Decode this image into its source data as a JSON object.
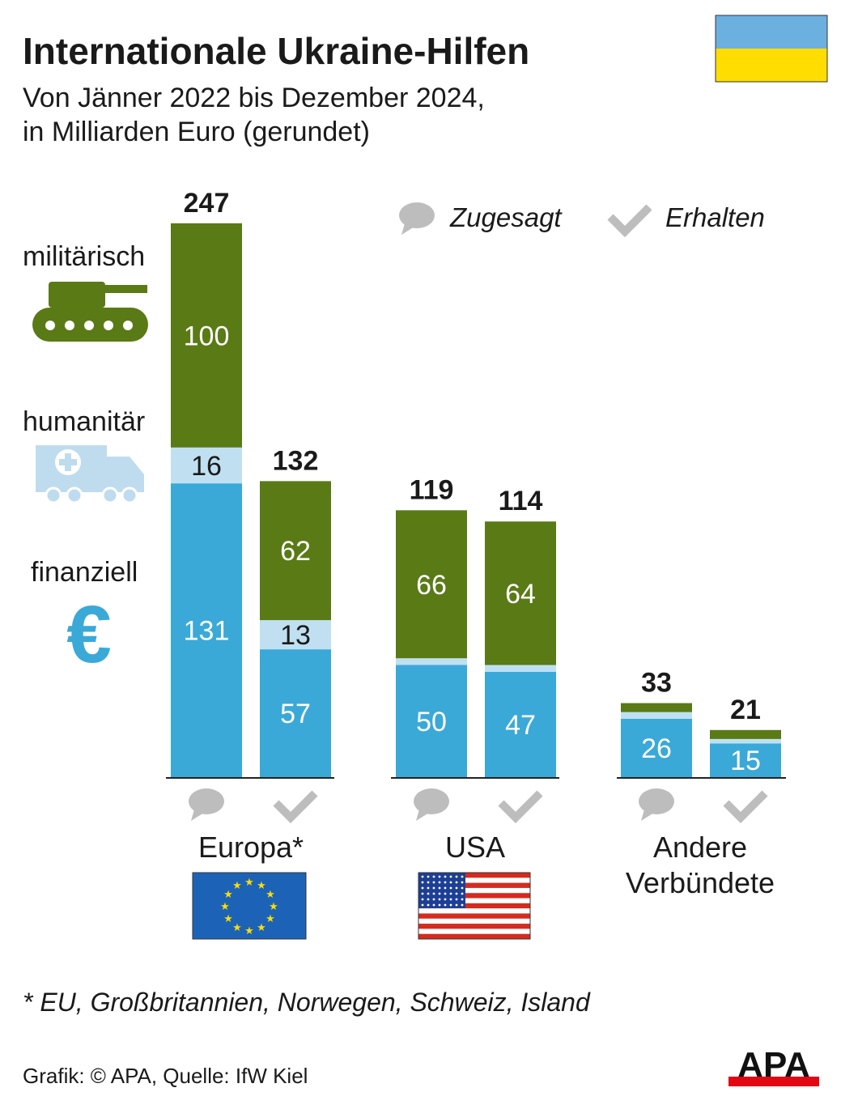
{
  "header": {
    "title": "Internationale Ukraine-Hilfen",
    "subtitle_line1": "Von Jänner 2022 bis Dezember 2024,",
    "subtitle_line2": "in Milliarden Euro (gerundet)"
  },
  "colors": {
    "military": "#5a7a16",
    "humanitarian": "#c0e0f2",
    "financial": "#3aa9d8",
    "icon_grey": "#bdbdbd",
    "flag_blue": "#6cb0e0",
    "flag_yellow": "#ffdd00"
  },
  "categories_legend": {
    "military": "militärisch",
    "humanitarian": "humanitär",
    "financial": "finanziell"
  },
  "legend": {
    "pledged": "Zugesagt",
    "received": "Erhalten"
  },
  "chart_data": {
    "type": "bar",
    "stacked": true,
    "title": "Internationale Ukraine-Hilfen",
    "unit": "Milliarden Euro",
    "groups": [
      "Europa*",
      "USA",
      "Andere Verbündete"
    ],
    "group_labels": [
      [
        "Europa*"
      ],
      [
        "USA"
      ],
      [
        "Andere",
        "Verbündete"
      ]
    ],
    "series_names": [
      "finanziell",
      "humanitär",
      "militärisch"
    ],
    "bars": [
      {
        "group": "Europa*",
        "type": "Zugesagt",
        "total": 247,
        "values": [
          131,
          16,
          100
        ],
        "labels": [
          "131",
          "16",
          "100"
        ]
      },
      {
        "group": "Europa*",
        "type": "Erhalten",
        "total": 132,
        "values": [
          57,
          13,
          62
        ],
        "labels": [
          "57",
          "13",
          "62"
        ]
      },
      {
        "group": "USA",
        "type": "Zugesagt",
        "total": 119,
        "values": [
          50,
          3,
          66
        ],
        "labels": [
          "50",
          null,
          "66"
        ]
      },
      {
        "group": "USA",
        "type": "Erhalten",
        "total": 114,
        "values": [
          47,
          3,
          64
        ],
        "labels": [
          "47",
          null,
          "64"
        ]
      },
      {
        "group": "Andere Verbündete",
        "type": "Zugesagt",
        "total": 33,
        "values": [
          26,
          3,
          4
        ],
        "labels": [
          "26",
          null,
          null
        ]
      },
      {
        "group": "Andere Verbündete",
        "type": "Erhalten",
        "total": 21,
        "values": [
          15,
          2,
          4
        ],
        "labels": [
          "15",
          null,
          null
        ]
      }
    ]
  },
  "footnote": "* EU, Großbritannien, Norwegen, Schweiz, Island",
  "source": "Grafik: © APA, Quelle: IfW Kiel",
  "logo": "APA"
}
